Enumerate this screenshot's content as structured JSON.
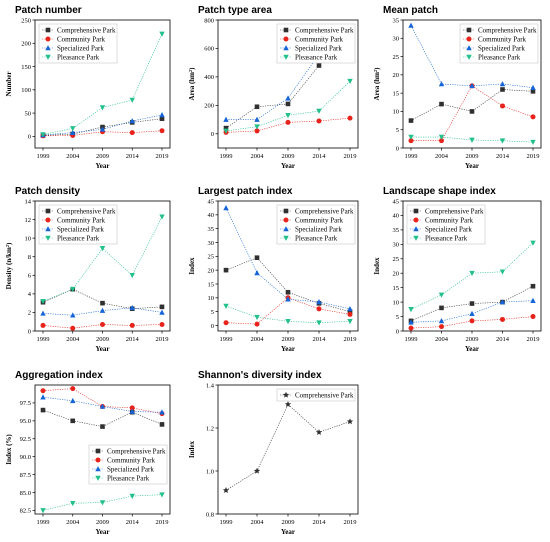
{
  "chart_data": [
    {
      "type": "line",
      "title": "Patch number",
      "xlabel": "Year",
      "ylabel": "Number",
      "x": [
        "1999",
        "2004",
        "2009",
        "2014",
        "2019"
      ],
      "ylim": [
        -25,
        250
      ],
      "yticks": [
        0,
        50,
        100,
        150,
        200,
        250
      ],
      "legend": "top-left",
      "series": [
        {
          "name": "Comprehensive Park",
          "values": [
            2,
            5,
            20,
            30,
            38
          ]
        },
        {
          "name": "Community Park",
          "values": [
            1,
            2,
            10,
            8,
            12
          ]
        },
        {
          "name": "Specialized Park",
          "values": [
            3,
            8,
            15,
            33,
            46
          ]
        },
        {
          "name": "Pleasance Park",
          "values": [
            4,
            17,
            62,
            78,
            220
          ]
        }
      ]
    },
    {
      "type": "line",
      "title": "Patch type area",
      "xlabel": "Year",
      "ylabel": "Area (hm²)",
      "x": [
        "1999",
        "2004",
        "2009",
        "2014",
        "2019"
      ],
      "ylim": [
        -100,
        800
      ],
      "yticks": [
        0,
        200,
        400,
        600,
        800
      ],
      "legend": "top-right",
      "series": [
        {
          "name": "Comprehensive Park",
          "values": [
            40,
            190,
            210,
            480,
            710
          ]
        },
        {
          "name": "Community Park",
          "values": [
            10,
            20,
            80,
            90,
            110
          ]
        },
        {
          "name": "Specialized Park",
          "values": [
            100,
            100,
            250,
            560,
            600
          ]
        },
        {
          "name": "Pleasance Park",
          "values": [
            20,
            50,
            130,
            160,
            370
          ]
        }
      ]
    },
    {
      "type": "line",
      "title": "Mean patch",
      "xlabel": "Year",
      "ylabel": "Area (hm²)",
      "x": [
        "1999",
        "2004",
        "2009",
        "2014",
        "2019"
      ],
      "ylim": [
        0,
        35
      ],
      "yticks": [
        0,
        5,
        10,
        15,
        20,
        25,
        30,
        35
      ],
      "legend": "top-right",
      "series": [
        {
          "name": "Comprehensive Park",
          "values": [
            7.5,
            12,
            10,
            16,
            15.5
          ]
        },
        {
          "name": "Community Park",
          "values": [
            2,
            2,
            17,
            11.5,
            8.5
          ]
        },
        {
          "name": "Specialized Park",
          "values": [
            33.5,
            17.5,
            17,
            17.5,
            16.5
          ]
        },
        {
          "name": "Pleasance Park",
          "values": [
            3,
            3,
            2.2,
            2,
            1.6
          ]
        }
      ]
    },
    {
      "type": "line",
      "title": "Patch density",
      "xlabel": "Year",
      "ylabel": "Density (n/km²)",
      "x": [
        "1999",
        "2004",
        "2009",
        "2014",
        "2019"
      ],
      "ylim": [
        0,
        14
      ],
      "yticks": [
        0,
        2,
        4,
        6,
        8,
        10,
        12,
        14
      ],
      "legend": "top-left",
      "series": [
        {
          "name": "Comprehensive Park",
          "values": [
            3.1,
            4.5,
            3.0,
            2.4,
            2.6
          ]
        },
        {
          "name": "Community Park",
          "values": [
            0.6,
            0.3,
            0.7,
            0.6,
            0.7
          ]
        },
        {
          "name": "Specialized Park",
          "values": [
            1.9,
            1.7,
            2.2,
            2.5,
            2.0
          ]
        },
        {
          "name": "Pleasance Park",
          "values": [
            3.2,
            4.5,
            8.9,
            6.0,
            12.3
          ]
        }
      ]
    },
    {
      "type": "line",
      "title": "Largest patch index",
      "xlabel": "Year",
      "ylabel": "Index",
      "x": [
        "1999",
        "2004",
        "2009",
        "2014",
        "2019"
      ],
      "ylim": [
        -2,
        45
      ],
      "yticks": [
        0,
        5,
        10,
        15,
        20,
        25,
        30,
        35,
        40,
        45
      ],
      "legend": "top-right",
      "series": [
        {
          "name": "Comprehensive Park",
          "values": [
            20,
            24.5,
            12,
            8,
            5
          ]
        },
        {
          "name": "Community Park",
          "values": [
            1,
            0.5,
            10,
            6,
            4
          ]
        },
        {
          "name": "Specialized Park",
          "values": [
            42.5,
            19,
            9.5,
            8.5,
            6
          ]
        },
        {
          "name": "Pleasance Park",
          "values": [
            7,
            3,
            1.5,
            1,
            1.5
          ]
        }
      ]
    },
    {
      "type": "line",
      "title": "Landscape shape index",
      "xlabel": "Year",
      "ylabel": "Index",
      "x": [
        "1999",
        "2004",
        "2009",
        "2014",
        "2019"
      ],
      "ylim": [
        0,
        45
      ],
      "yticks": [
        0,
        5,
        10,
        15,
        20,
        25,
        30,
        35,
        40,
        45
      ],
      "legend": "top-left",
      "series": [
        {
          "name": "Comprehensive Park",
          "values": [
            3.5,
            8,
            9.5,
            10,
            15.5
          ]
        },
        {
          "name": "Community Park",
          "values": [
            1,
            1.5,
            3.5,
            4,
            5
          ]
        },
        {
          "name": "Specialized Park",
          "values": [
            3,
            3.5,
            6,
            10,
            10.5
          ]
        },
        {
          "name": "Pleasance Park",
          "values": [
            7.5,
            12.5,
            20,
            20.5,
            30.5
          ]
        }
      ]
    },
    {
      "type": "line",
      "title": "Aggregation index",
      "xlabel": "Year",
      "ylabel": "Index (%)",
      "x": [
        "1999",
        "2004",
        "2009",
        "2014",
        "2019"
      ],
      "ylim": [
        82,
        100
      ],
      "yticks": [
        82.5,
        85.0,
        87.5,
        90.0,
        92.5,
        95.0,
        97.5
      ],
      "ytick_labels": [
        "82.5",
        "85.0",
        "87.5",
        "90.0",
        "92.5",
        "95.0",
        "97.5"
      ],
      "legend": "middle-right",
      "series": [
        {
          "name": "Comprehensive Park",
          "values": [
            96.5,
            95.0,
            94.2,
            96.2,
            94.5
          ]
        },
        {
          "name": "Community Park",
          "values": [
            99.2,
            99.5,
            97.0,
            96.8,
            96.0
          ]
        },
        {
          "name": "Specialized Park",
          "values": [
            98.3,
            97.8,
            97.0,
            96.3,
            96.2
          ]
        },
        {
          "name": "Pleasance Park",
          "values": [
            82.5,
            83.5,
            83.6,
            84.5,
            84.7
          ]
        }
      ]
    },
    {
      "type": "line",
      "title": "Shannon's diversity index",
      "xlabel": "Year",
      "ylabel": "Index",
      "x": [
        "1999",
        "2004",
        "2009",
        "2014",
        "2019"
      ],
      "ylim": [
        0.8,
        1.4
      ],
      "yticks": [
        0.8,
        1.0,
        1.2,
        1.4
      ],
      "ytick_labels": [
        "0.8",
        "1.0",
        "1.2",
        "1.4"
      ],
      "legend": "top-right",
      "series": [
        {
          "name": "Comprehensive Park",
          "values": [
            0.91,
            1.0,
            1.31,
            1.18,
            1.23
          ]
        }
      ]
    }
  ],
  "styles": {
    "Comprehensive Park": {
      "color": "#303030",
      "marker": "square"
    },
    "Community Park": {
      "color": "#e8231c",
      "marker": "circle"
    },
    "Specialized Park": {
      "color": "#1565d8",
      "marker": "triangle-up"
    },
    "Pleasance Park": {
      "color": "#22c08a",
      "marker": "triangle-down"
    },
    "Shannon": {
      "color": "#303030",
      "marker": "star"
    }
  }
}
